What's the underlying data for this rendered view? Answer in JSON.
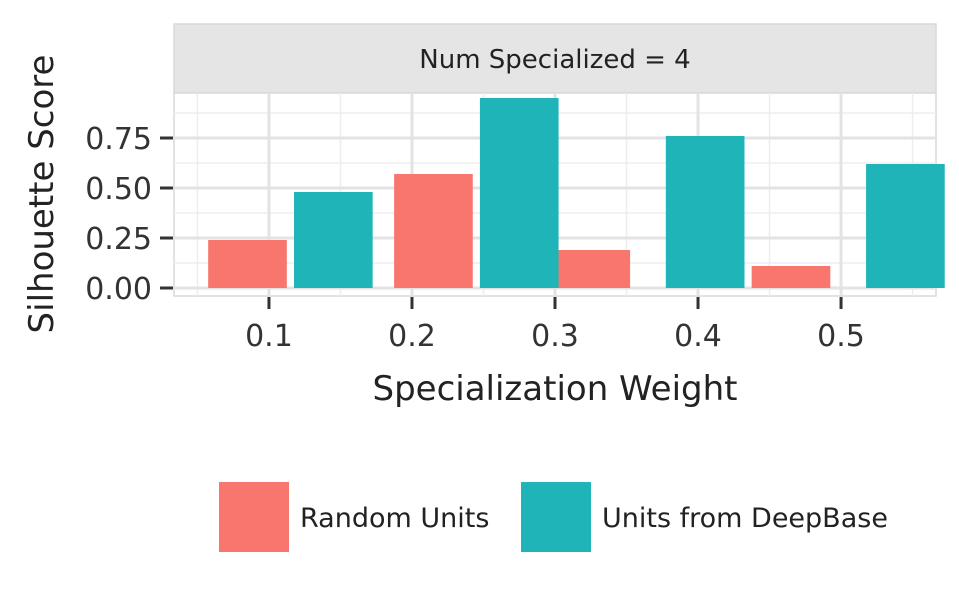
{
  "chart_data": {
    "type": "bar",
    "facet_label": "Num Specialized = 4",
    "xlabel": "Specialization Weight",
    "ylabel": "Silhouette Score",
    "x": [
      0.1,
      0.2,
      0.3,
      0.4,
      0.5
    ],
    "x_tick_labels": [
      "0.1",
      "0.2",
      "0.3",
      "0.4",
      "0.5"
    ],
    "y_ticks": [
      0,
      0.25,
      0.5,
      0.75
    ],
    "y_tick_labels": [
      "0.00",
      "0.25",
      "0.50",
      "0.75"
    ],
    "ylim": [
      0,
      0.99
    ],
    "grid": true,
    "legend_position": "bottom",
    "series": [
      {
        "name": "Random Units",
        "color": "#F8766D",
        "points": [
          {
            "x": 0.085,
            "y": 0.24
          },
          {
            "x": 0.215,
            "y": 0.57
          },
          {
            "x": 0.325,
            "y": 0.19
          },
          {
            "x": 0.465,
            "y": 0.11
          }
        ]
      },
      {
        "name": "Units from DeepBase",
        "color": "#1FB5B8",
        "points": [
          {
            "x": 0.145,
            "y": 0.48
          },
          {
            "x": 0.275,
            "y": 0.95
          },
          {
            "x": 0.405,
            "y": 0.76
          },
          {
            "x": 0.545,
            "y": 0.62
          }
        ]
      }
    ]
  }
}
